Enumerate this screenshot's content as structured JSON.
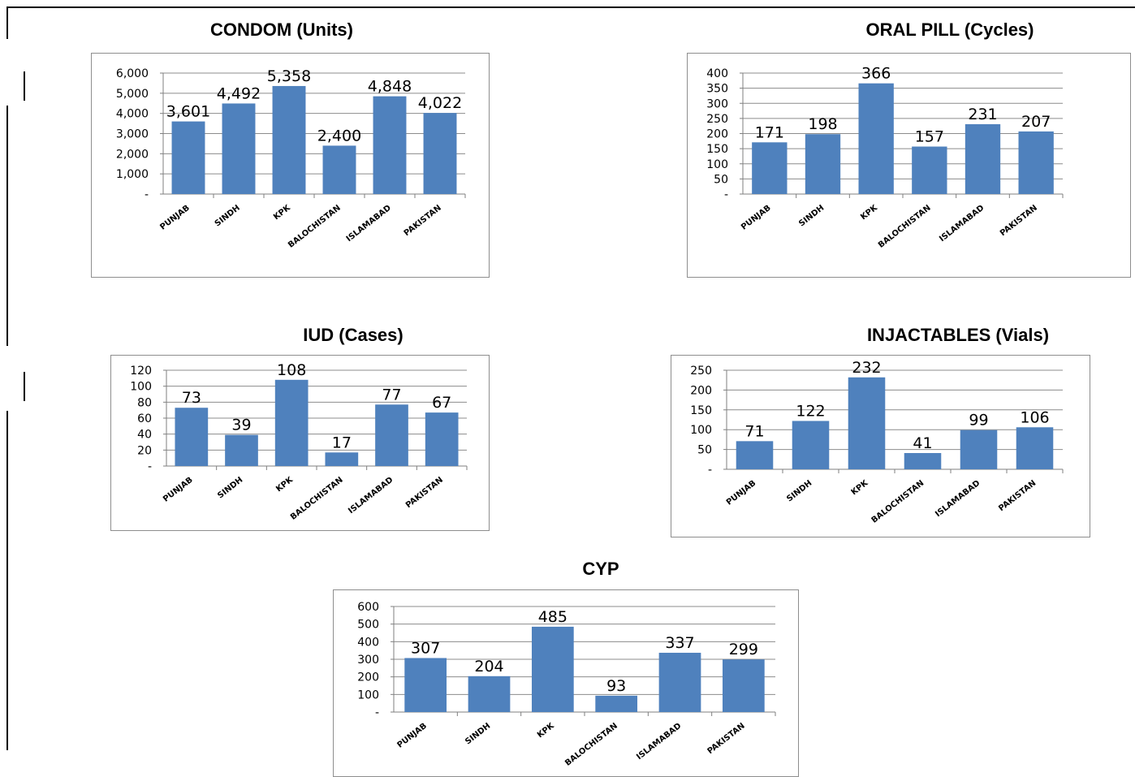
{
  "chart_data": [
    {
      "type": "bar",
      "title": "CONDOM (Units)",
      "categories": [
        "PUNJAB",
        "SINDH",
        "KPK",
        "BALOCHISTAN",
        "ISLAMABAD",
        "PAKISTAN"
      ],
      "values": [
        3601,
        4492,
        5358,
        2400,
        4848,
        4022
      ],
      "data_labels": [
        "3,601",
        "4,492",
        "5,358",
        "2,400",
        "4,848",
        "4,022"
      ],
      "ylim": [
        0,
        6000
      ],
      "yticks": [
        0,
        1000,
        2000,
        3000,
        4000,
        5000,
        6000
      ],
      "ytick_labels": [
        "-",
        "1,000",
        "2,000",
        "3,000",
        "4,000",
        "5,000",
        "6,000"
      ],
      "grid": true,
      "color": "#4f81bd"
    },
    {
      "type": "bar",
      "title": "ORAL PILL (Cycles)",
      "categories": [
        "PUNJAB",
        "SINDH",
        "KPK",
        "BALOCHISTAN",
        "ISLAMABAD",
        "PAKISTAN"
      ],
      "values": [
        171,
        198,
        366,
        157,
        231,
        207
      ],
      "data_labels": [
        "171",
        "198",
        "366",
        "157",
        "231",
        "207"
      ],
      "ylim": [
        0,
        400
      ],
      "yticks": [
        0,
        50,
        100,
        150,
        200,
        250,
        300,
        350,
        400
      ],
      "ytick_labels": [
        "-",
        "50",
        "100",
        "150",
        "200",
        "250",
        "300",
        "350",
        "400"
      ],
      "grid": true,
      "color": "#4f81bd"
    },
    {
      "type": "bar",
      "title": "IUD (Cases)",
      "categories": [
        "PUNJAB",
        "SINDH",
        "KPK",
        "BALOCHISTAN",
        "ISLAMABAD",
        "PAKISTAN"
      ],
      "values": [
        73,
        39,
        108,
        17,
        77,
        67
      ],
      "data_labels": [
        "73",
        "39",
        "108",
        "17",
        "77",
        "67"
      ],
      "ylim": [
        0,
        120
      ],
      "yticks": [
        0,
        20,
        40,
        60,
        80,
        100,
        120
      ],
      "ytick_labels": [
        "-",
        "20",
        "40",
        "60",
        "80",
        "100",
        "120"
      ],
      "grid": true,
      "color": "#4f81bd"
    },
    {
      "type": "bar",
      "title": "INJACTABLES (Vials)",
      "categories": [
        "PUNJAB",
        "SINDH",
        "KPK",
        "BALOCHISTAN",
        "ISLAMABAD",
        "PAKISTAN"
      ],
      "values": [
        71,
        122,
        232,
        41,
        99,
        106
      ],
      "data_labels": [
        "71",
        "122",
        "232",
        "41",
        "99",
        "106"
      ],
      "ylim": [
        0,
        250
      ],
      "yticks": [
        0,
        50,
        100,
        150,
        200,
        250
      ],
      "ytick_labels": [
        "-",
        "50",
        "100",
        "150",
        "200",
        "250"
      ],
      "grid": true,
      "color": "#4f81bd"
    },
    {
      "type": "bar",
      "title": "CYP",
      "categories": [
        "PUNJAB",
        "SINDH",
        "KPK",
        "BALOCHISTAN",
        "ISLAMABAD",
        "PAKISTAN"
      ],
      "values": [
        307,
        204,
        485,
        93,
        337,
        299
      ],
      "data_labels": [
        "307",
        "204",
        "485",
        "93",
        "337",
        "299"
      ],
      "ylim": [
        0,
        600
      ],
      "yticks": [
        0,
        100,
        200,
        300,
        400,
        500,
        600
      ],
      "ytick_labels": [
        "-",
        "100",
        "200",
        "300",
        "400",
        "500",
        "600"
      ],
      "grid": true,
      "color": "#4f81bd"
    }
  ]
}
